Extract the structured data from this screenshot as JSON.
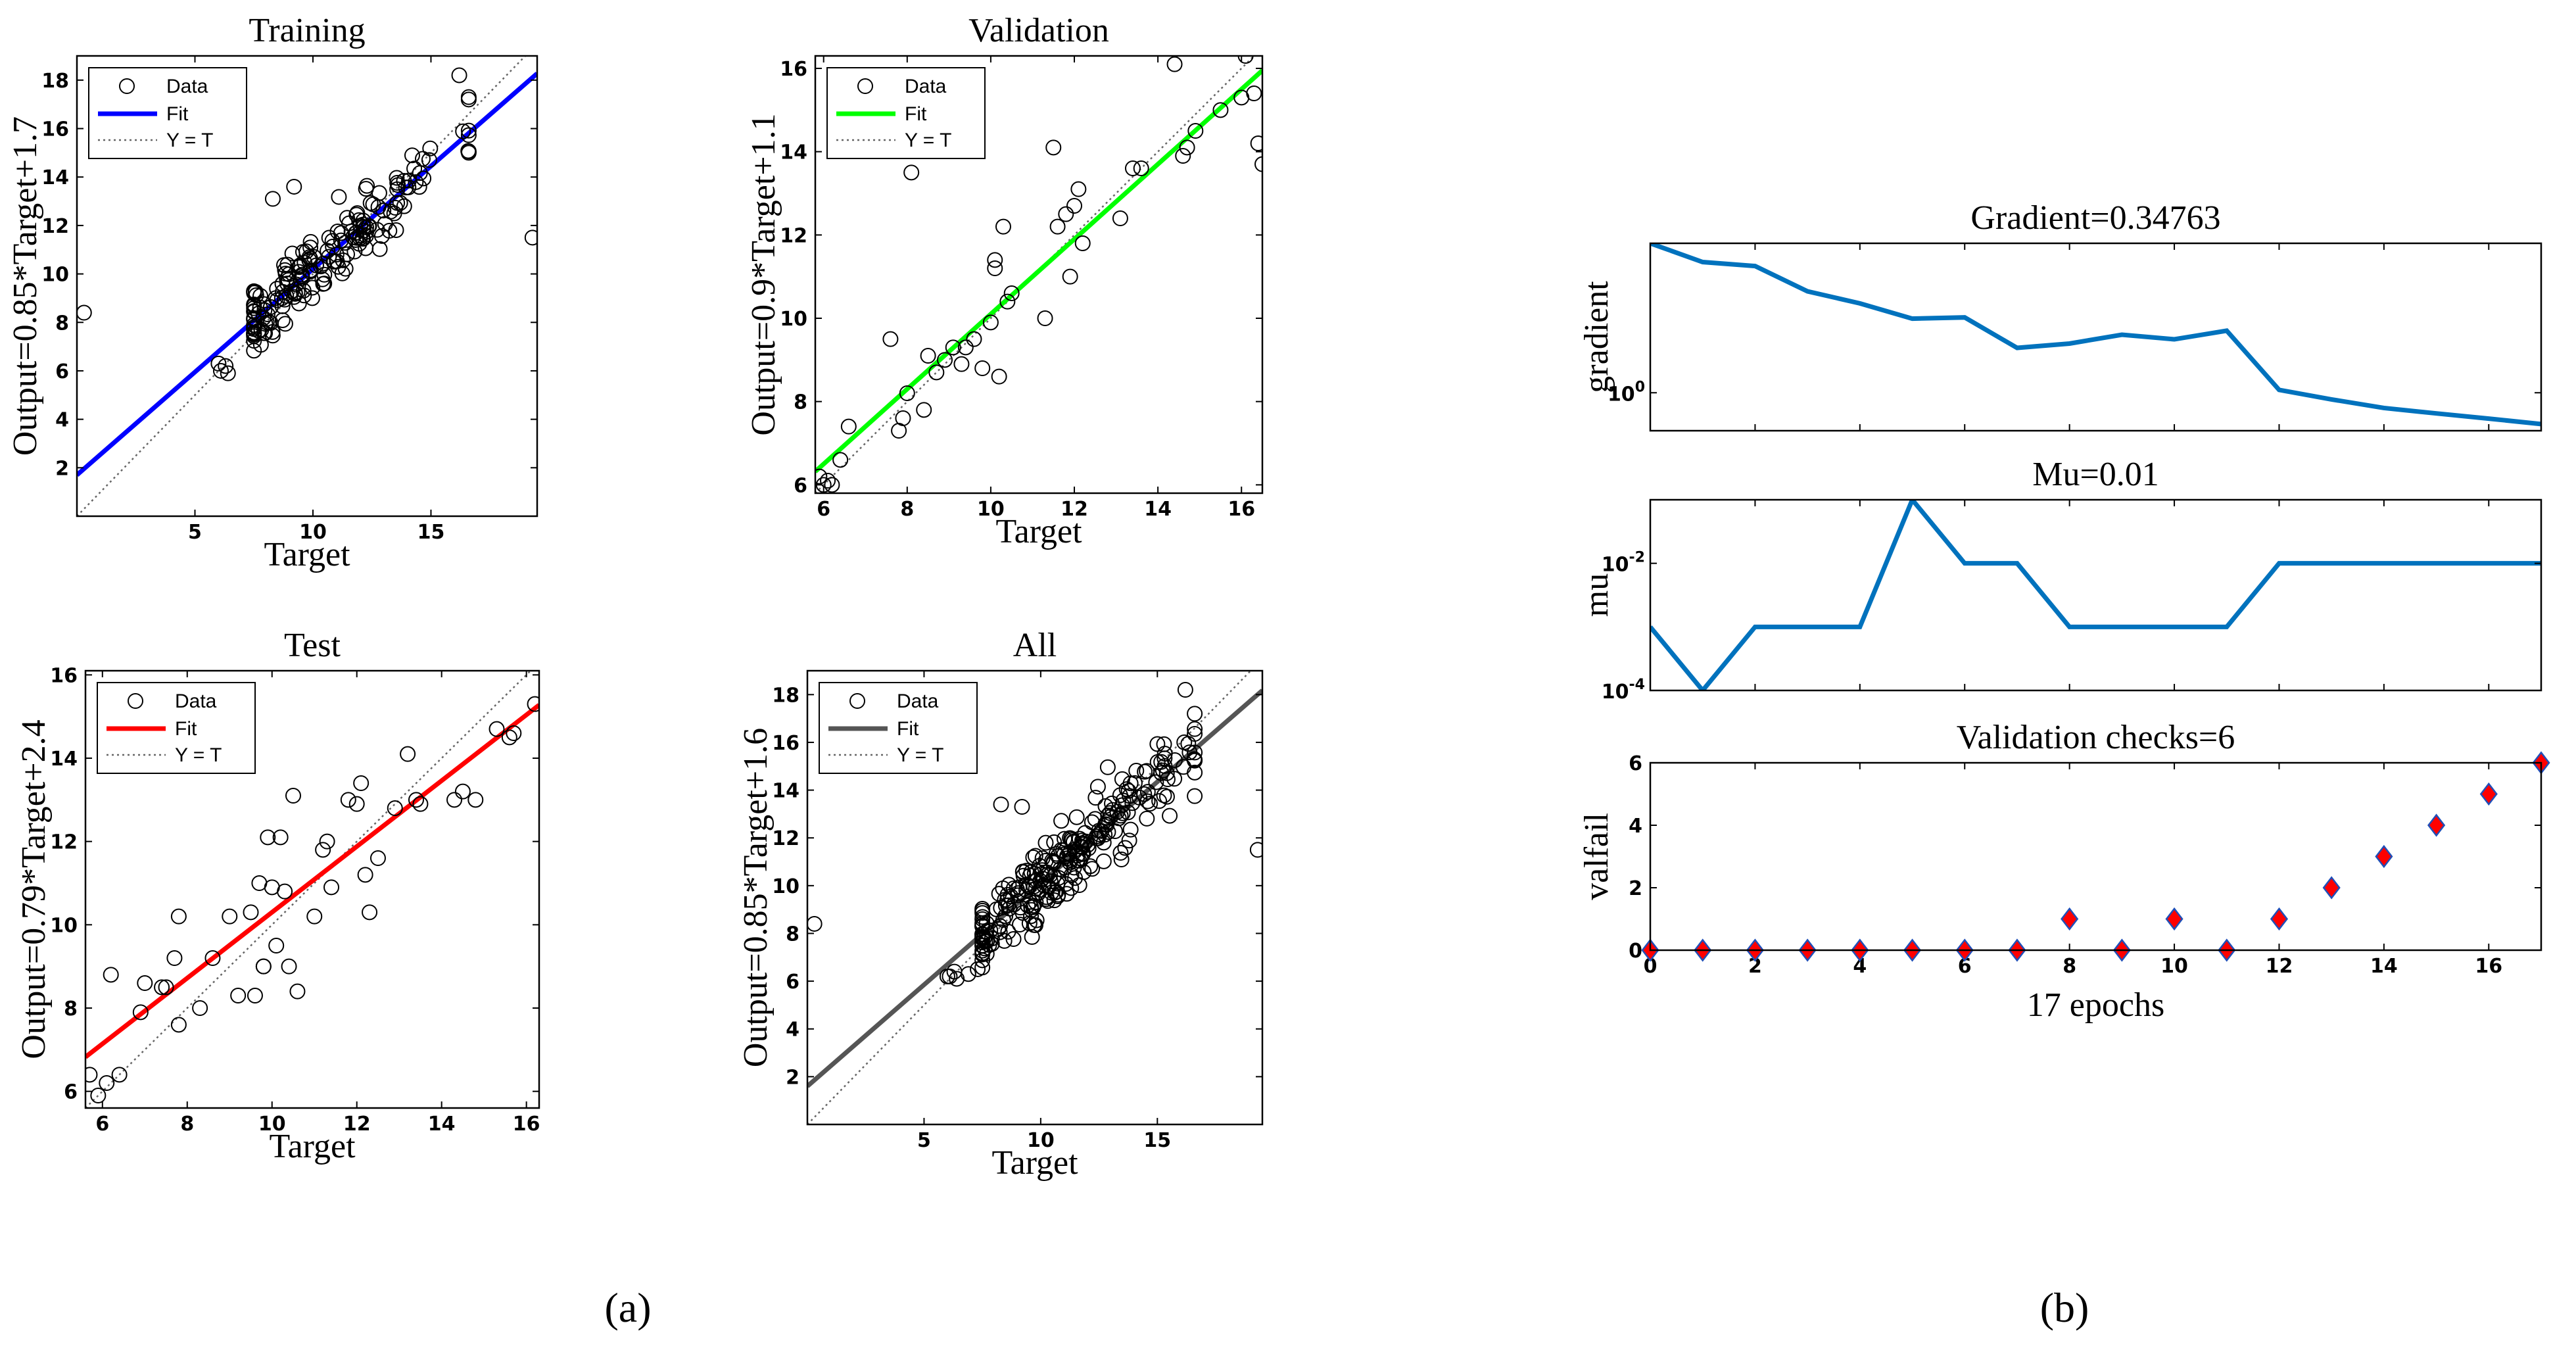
{
  "captions": {
    "left": "(a)",
    "right": "(b)"
  },
  "chart_data": [
    {
      "id": "training",
      "type": "scatter",
      "title": "Training",
      "xlabel": "Target",
      "ylabel": "Output=0.85*Target+1.7",
      "xlim": [
        0,
        19.5
      ],
      "ylim": [
        0,
        19
      ],
      "xticks": [
        5,
        10,
        15
      ],
      "yticks": [
        2,
        4,
        6,
        8,
        10,
        12,
        14,
        16,
        18
      ],
      "fit": {
        "slope": 0.85,
        "intercept": 1.7,
        "color": "#0000ff"
      },
      "legend": [
        "Data",
        "Fit",
        "Y = T"
      ],
      "cluster": {
        "center": [
          10.5,
          10.5
        ],
        "spread": 2.8,
        "count": 190,
        "seed": 11
      },
      "points": [
        [
          0.3,
          8.4
        ],
        [
          19.3,
          11.5
        ],
        [
          16.2,
          18.2
        ],
        [
          6.1,
          6.0
        ],
        [
          6.3,
          6.2
        ],
        [
          6.0,
          6.3
        ],
        [
          6.4,
          5.9
        ],
        [
          8.3,
          13.1
        ],
        [
          9.2,
          13.6
        ],
        [
          16.6,
          17.2
        ]
      ]
    },
    {
      "id": "validation",
      "type": "scatter",
      "title": "Validation",
      "xlabel": "Target",
      "ylabel": "Output=0.9*Target+1.1",
      "xlim": [
        5.8,
        16.5
      ],
      "ylim": [
        5.8,
        16.3
      ],
      "xticks": [
        6,
        8,
        10,
        12,
        14,
        16
      ],
      "yticks": [
        6,
        8,
        10,
        12,
        14,
        16
      ],
      "fit": {
        "slope": 0.9,
        "intercept": 1.1,
        "color": "#00ff00"
      },
      "legend": [
        "Data",
        "Fit",
        "Y = T"
      ],
      "points": [
        [
          5.9,
          6.2
        ],
        [
          6.0,
          6.0
        ],
        [
          6.1,
          6.1
        ],
        [
          6.2,
          6.0
        ],
        [
          6.4,
          6.6
        ],
        [
          6.6,
          7.4
        ],
        [
          7.6,
          9.5
        ],
        [
          7.8,
          7.3
        ],
        [
          7.9,
          7.6
        ],
        [
          8.0,
          8.2
        ],
        [
          8.1,
          13.5
        ],
        [
          8.4,
          7.8
        ],
        [
          8.5,
          9.1
        ],
        [
          8.7,
          8.7
        ],
        [
          8.9,
          9.0
        ],
        [
          9.1,
          9.3
        ],
        [
          9.3,
          8.9
        ],
        [
          9.4,
          9.3
        ],
        [
          9.6,
          9.5
        ],
        [
          9.8,
          8.8
        ],
        [
          10.0,
          9.9
        ],
        [
          10.1,
          11.2
        ],
        [
          10.2,
          8.6
        ],
        [
          10.3,
          12.2
        ],
        [
          10.4,
          10.4
        ],
        [
          10.5,
          10.6
        ],
        [
          11.3,
          10.0
        ],
        [
          11.5,
          14.1
        ],
        [
          11.8,
          12.5
        ],
        [
          11.9,
          11.0
        ],
        [
          12.0,
          12.7
        ],
        [
          12.1,
          13.1
        ],
        [
          12.2,
          11.8
        ],
        [
          13.1,
          12.4
        ],
        [
          13.4,
          13.6
        ],
        [
          13.6,
          13.6
        ],
        [
          14.4,
          16.1
        ],
        [
          14.6,
          13.9
        ],
        [
          14.7,
          14.1
        ],
        [
          14.9,
          14.5
        ],
        [
          15.5,
          15.0
        ],
        [
          16.0,
          15.3
        ],
        [
          16.1,
          16.3
        ],
        [
          16.3,
          15.4
        ],
        [
          16.4,
          14.2
        ],
        [
          16.5,
          13.7
        ],
        [
          10.1,
          11.4
        ],
        [
          11.6,
          12.2
        ]
      ]
    },
    {
      "id": "test",
      "type": "scatter",
      "title": "Test",
      "xlabel": "Target",
      "ylabel": "Output=0.79*Target+2.4",
      "xlim": [
        5.6,
        16.3
      ],
      "ylim": [
        5.6,
        16.1
      ],
      "xticks": [
        6,
        8,
        10,
        12,
        14,
        16
      ],
      "yticks": [
        6,
        8,
        10,
        12,
        14,
        16
      ],
      "fit": {
        "slope": 0.79,
        "intercept": 2.4,
        "color": "#ff0000"
      },
      "legend": [
        "Data",
        "Fit",
        "Y = T"
      ],
      "points": [
        [
          5.7,
          6.4
        ],
        [
          5.9,
          5.9
        ],
        [
          6.1,
          6.2
        ],
        [
          6.2,
          8.8
        ],
        [
          6.4,
          6.4
        ],
        [
          6.9,
          7.9
        ],
        [
          7.0,
          8.6
        ],
        [
          7.4,
          8.5
        ],
        [
          7.5,
          8.5
        ],
        [
          7.7,
          9.2
        ],
        [
          7.8,
          7.6
        ],
        [
          7.8,
          10.2
        ],
        [
          8.3,
          8.0
        ],
        [
          8.6,
          9.2
        ],
        [
          9.0,
          10.2
        ],
        [
          9.2,
          8.3
        ],
        [
          9.5,
          10.3
        ],
        [
          9.6,
          8.3
        ],
        [
          9.7,
          11.0
        ],
        [
          9.8,
          9.0
        ],
        [
          9.9,
          12.1
        ],
        [
          10.0,
          10.9
        ],
        [
          10.1,
          9.5
        ],
        [
          10.2,
          12.1
        ],
        [
          10.3,
          10.8
        ],
        [
          10.4,
          9.0
        ],
        [
          10.5,
          13.1
        ],
        [
          10.6,
          8.4
        ],
        [
          11.0,
          10.2
        ],
        [
          11.2,
          11.8
        ],
        [
          11.3,
          12.0
        ],
        [
          11.4,
          10.9
        ],
        [
          11.8,
          13.0
        ],
        [
          12.0,
          12.9
        ],
        [
          12.2,
          11.2
        ],
        [
          12.3,
          10.3
        ],
        [
          12.5,
          11.6
        ],
        [
          12.9,
          12.8
        ],
        [
          13.2,
          14.1
        ],
        [
          13.4,
          13.0
        ],
        [
          14.3,
          13.0
        ],
        [
          14.5,
          13.2
        ],
        [
          14.8,
          13.0
        ],
        [
          15.3,
          14.7
        ],
        [
          15.6,
          14.5
        ],
        [
          15.7,
          14.6
        ],
        [
          16.2,
          15.3
        ],
        [
          12.1,
          13.4
        ],
        [
          13.5,
          12.9
        ],
        [
          9.8,
          9.0
        ]
      ]
    },
    {
      "id": "all",
      "type": "scatter",
      "title": "All",
      "xlabel": "Target",
      "ylabel": "Output=0.85*Target+1.6",
      "xlim": [
        0,
        19.5
      ],
      "ylim": [
        0,
        19
      ],
      "xticks": [
        5,
        10,
        15
      ],
      "yticks": [
        2,
        4,
        6,
        8,
        10,
        12,
        14,
        16,
        18
      ],
      "fit": {
        "slope": 0.85,
        "intercept": 1.6,
        "color": "#555555"
      },
      "legend": [
        "Data",
        "Fit",
        "Y = T"
      ],
      "cluster": {
        "center": [
          10.5,
          10.5
        ],
        "spread": 2.8,
        "count": 260,
        "seed": 29
      },
      "points": [
        [
          0.3,
          8.4
        ],
        [
          19.3,
          11.5
        ],
        [
          16.2,
          18.2
        ],
        [
          6.1,
          6.2
        ],
        [
          6.3,
          6.4
        ],
        [
          6.0,
          6.2
        ],
        [
          6.4,
          6.1
        ],
        [
          8.3,
          13.4
        ],
        [
          9.2,
          13.3
        ],
        [
          16.6,
          17.2
        ],
        [
          6.9,
          6.3
        ],
        [
          7.3,
          6.5
        ]
      ]
    },
    {
      "id": "gradient",
      "type": "line",
      "title": "Gradient=0.34763",
      "ylabel": "gradient",
      "xlim": [
        0,
        17
      ],
      "yscale": "log",
      "ylim": [
        0.28,
        150
      ],
      "yticks": [
        {
          "value": 1,
          "base": "10",
          "exp": "0"
        }
      ],
      "color": "#0072bd",
      "x": [
        0,
        1,
        2,
        3,
        4,
        5,
        6,
        7,
        8,
        9,
        10,
        11,
        12,
        13,
        14,
        15,
        16,
        17
      ],
      "y": [
        150,
        80,
        70,
        30,
        20,
        12,
        12.5,
        4.5,
        5.2,
        7,
        6,
        8,
        1.1,
        0.8,
        0.6,
        0.5,
        0.42,
        0.35
      ]
    },
    {
      "id": "mu",
      "type": "line",
      "title": "Mu=0.01",
      "ylabel": "mu",
      "xlim": [
        0,
        17
      ],
      "yscale": "log",
      "ylim": [
        0.0001,
        0.1
      ],
      "yticks": [
        {
          "value": 0.01,
          "base": "10",
          "exp": "-2"
        },
        {
          "value": 0.0001,
          "base": "10",
          "exp": "-4"
        }
      ],
      "color": "#0072bd",
      "x": [
        0,
        1,
        2,
        3,
        4,
        5,
        6,
        7,
        8,
        9,
        10,
        11,
        12,
        13,
        14,
        15,
        16,
        17
      ],
      "y": [
        0.001,
        0.0001,
        0.001,
        0.001,
        0.001,
        0.1,
        0.01,
        0.01,
        0.001,
        0.001,
        0.001,
        0.001,
        0.01,
        0.01,
        0.01,
        0.01,
        0.01,
        0.01
      ]
    },
    {
      "id": "valfail",
      "type": "scatter",
      "title": "Validation checks=6",
      "xlabel": "17 epochs",
      "ylabel": "valfail",
      "xlim": [
        0,
        17
      ],
      "ylim": [
        0,
        6
      ],
      "xticks": [
        0,
        2,
        4,
        6,
        8,
        10,
        12,
        14,
        16
      ],
      "yticks": [
        0,
        2,
        4,
        6
      ],
      "marker": "diamond",
      "color": "#ff0000",
      "x": [
        0,
        1,
        2,
        3,
        4,
        5,
        6,
        7,
        8,
        9,
        10,
        11,
        12,
        13,
        14,
        15,
        16,
        17
      ],
      "y": [
        0,
        0,
        0,
        0,
        0,
        0,
        0,
        0,
        1,
        0,
        1,
        0,
        1,
        2,
        3,
        4,
        5,
        6
      ]
    }
  ]
}
